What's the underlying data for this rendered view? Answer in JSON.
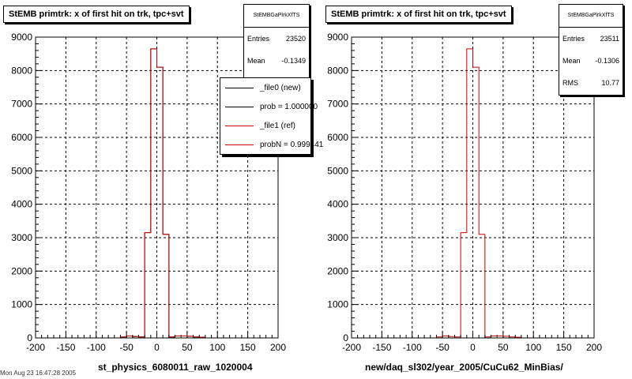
{
  "colors": {
    "new": "#000000",
    "ref": "#cc0000",
    "frame": "#000000",
    "grid": "#000000"
  },
  "panels": [
    {
      "title": "StEMB primtrk: x of first hit on trk, tpc+svt",
      "xtitle": "st_physics_6080011_raw_1020004",
      "stats": {
        "name": "StEMBGaPlrkXfTS",
        "rows": [
          {
            "label": "Entries",
            "value": "23520"
          },
          {
            "label": "Mean",
            "value": "-0.1349"
          }
        ]
      },
      "legend": [
        {
          "label": "_file0 (new)",
          "color": "#000000"
        },
        {
          "label": "prob = 1.000000",
          "color": "#000000"
        },
        {
          "label": "_file1 (ref)",
          "color": "#cc0000"
        },
        {
          "label": "probN = 0.999441",
          "color": "#cc0000"
        }
      ]
    },
    {
      "title": "StEMB primtrk: x of first hit on trk, tpc+svt",
      "xtitle": "new/daq_sl302/year_2005/CuCu62_MinBias/",
      "stats": {
        "name": "StEMBGaPlrkXfTS",
        "rows": [
          {
            "label": "Entries",
            "value": "23511"
          },
          {
            "label": "Mean",
            "value": "-0.1306"
          },
          {
            "label": "RMS",
            "value": "10.77"
          }
        ]
      },
      "legend": []
    }
  ],
  "footer": "Mon Aug 23 16:47:28 2005",
  "chart_data": [
    {
      "type": "bar",
      "title": "StEMB primtrk: x of first hit on trk, tpc+svt",
      "xlabel": "st_physics_6080011_raw_1020004",
      "ylabel": "",
      "xlim": [
        -200,
        200
      ],
      "ylim": [
        0,
        9000
      ],
      "xticks": [
        -200,
        -150,
        -100,
        -50,
        0,
        50,
        100,
        150,
        200
      ],
      "yticks": [
        0,
        1000,
        2000,
        3000,
        4000,
        5000,
        6000,
        7000,
        8000,
        9000
      ],
      "grid": true,
      "legend_position": "top-right",
      "bin_edges": [
        -200,
        -190,
        -180,
        -170,
        -160,
        -150,
        -140,
        -130,
        -120,
        -110,
        -100,
        -90,
        -80,
        -70,
        -60,
        -50,
        -40,
        -30,
        -20,
        -10,
        0,
        10,
        20,
        30,
        40,
        50,
        60,
        70,
        80,
        90,
        100,
        110,
        120,
        130,
        140,
        150,
        160,
        170,
        180,
        190,
        200
      ],
      "series": [
        {
          "name": "_file0 (new)",
          "values": [
            0,
            0,
            0,
            0,
            0,
            0,
            0,
            0,
            0,
            0,
            0,
            0,
            0,
            0,
            30,
            60,
            40,
            30,
            3150,
            8650,
            8100,
            3100,
            30,
            60,
            60,
            50,
            30,
            20,
            0,
            0,
            0,
            0,
            0,
            0,
            0,
            0,
            0,
            0,
            0,
            0
          ]
        },
        {
          "name": "_file1 (ref)",
          "values": [
            0,
            0,
            0,
            0,
            0,
            0,
            0,
            0,
            0,
            0,
            0,
            0,
            0,
            0,
            30,
            60,
            40,
            30,
            3150,
            8650,
            8100,
            3100,
            30,
            60,
            60,
            50,
            30,
            20,
            0,
            0,
            0,
            0,
            0,
            0,
            0,
            0,
            0,
            0,
            0,
            0
          ]
        }
      ]
    },
    {
      "type": "bar",
      "title": "StEMB primtrk: x of first hit on trk, tpc+svt",
      "xlabel": "new/daq_sl302/year_2005/CuCu62_MinBias/",
      "ylabel": "",
      "xlim": [
        -200,
        200
      ],
      "ylim": [
        0,
        9000
      ],
      "xticks": [
        -200,
        -150,
        -100,
        -50,
        0,
        50,
        100,
        150,
        200
      ],
      "yticks": [
        0,
        1000,
        2000,
        3000,
        4000,
        5000,
        6000,
        7000,
        8000,
        9000
      ],
      "grid": true,
      "bin_edges": [
        -200,
        -190,
        -180,
        -170,
        -160,
        -150,
        -140,
        -130,
        -120,
        -110,
        -100,
        -90,
        -80,
        -70,
        -60,
        -50,
        -40,
        -30,
        -20,
        -10,
        0,
        10,
        20,
        30,
        40,
        50,
        60,
        70,
        80,
        90,
        100,
        110,
        120,
        130,
        140,
        150,
        160,
        170,
        180,
        190,
        200
      ],
      "series": [
        {
          "name": "",
          "values": [
            0,
            0,
            0,
            0,
            0,
            0,
            0,
            0,
            0,
            0,
            0,
            0,
            0,
            0,
            30,
            60,
            40,
            30,
            3150,
            8650,
            8100,
            3100,
            30,
            60,
            60,
            50,
            30,
            20,
            0,
            0,
            0,
            0,
            0,
            0,
            0,
            0,
            0,
            0,
            0,
            0
          ]
        }
      ]
    }
  ]
}
